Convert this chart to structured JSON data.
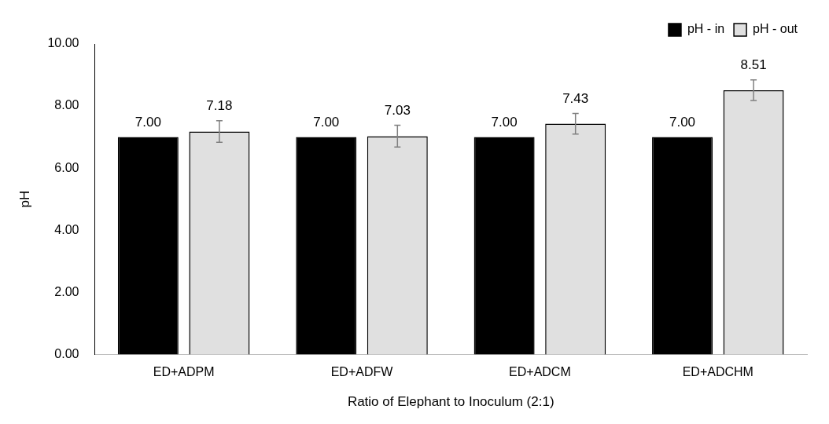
{
  "chart_data": {
    "type": "bar",
    "xlabel": "Ratio of Elephant to Inoculum (2:1)",
    "ylabel": "pH",
    "categories": [
      "ED+ADPM",
      "ED+ADFW",
      "ED+ADCM",
      "ED+ADCHM"
    ],
    "series": [
      {
        "name": "pH - in",
        "color": "#000000",
        "values": [
          7.0,
          7.0,
          7.0,
          7.0
        ],
        "value_labels": [
          "7.00",
          "7.00",
          "7.00",
          "7.00"
        ]
      },
      {
        "name": "pH - out",
        "color": "#e0e0e0",
        "values": [
          7.18,
          7.03,
          7.43,
          8.51
        ],
        "errors": [
          0.35,
          0.35,
          0.33,
          0.33
        ],
        "value_labels": [
          "7.18",
          "7.03",
          "7.43",
          "8.51"
        ]
      }
    ],
    "ylim": [
      0,
      10
    ],
    "yticks": [
      {
        "value": 0,
        "label": "0.00"
      },
      {
        "value": 2,
        "label": "2.00"
      },
      {
        "value": 4,
        "label": "4.00"
      },
      {
        "value": 6,
        "label": "6.00"
      },
      {
        "value": 8,
        "label": "8.00"
      },
      {
        "value": 10,
        "label": "10.00"
      }
    ],
    "grid": false,
    "legend": "top right"
  }
}
